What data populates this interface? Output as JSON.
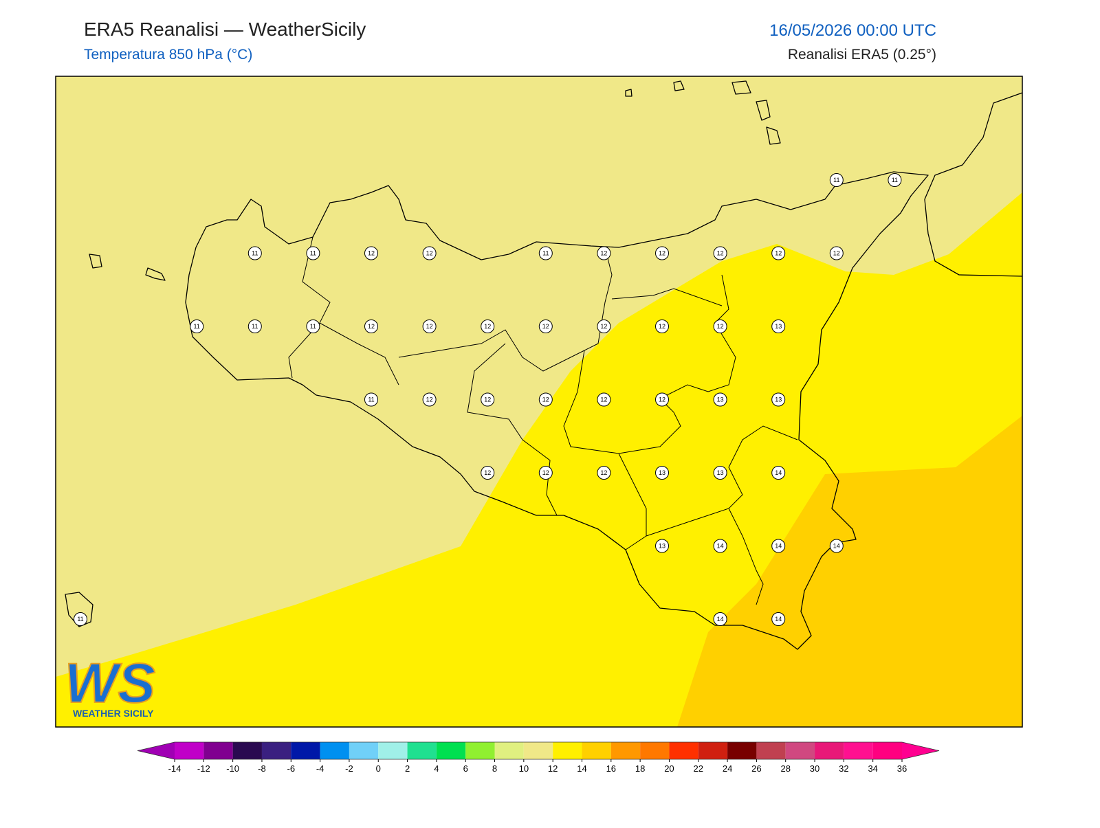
{
  "header": {
    "title": "ERA5 Reanalisi — WeatherSicily",
    "subtitle": "Temperatura 850 hPa (°C)",
    "date": "16/05/2026 00:00 UTC",
    "source": "Reanalisi ERA5 (0.25°)"
  },
  "stations": {
    "rows": [
      [
        null,
        null,
        null,
        null,
        null,
        null,
        null,
        null,
        null,
        null,
        null,
        null,
        null,
        11,
        11
      ],
      [
        null,
        null,
        null,
        11,
        11,
        12,
        12,
        null,
        11,
        12,
        12,
        12,
        12,
        12,
        null
      ],
      [
        null,
        null,
        11,
        11,
        11,
        12,
        12,
        12,
        12,
        12,
        12,
        12,
        13,
        null,
        null
      ],
      [
        null,
        null,
        null,
        null,
        null,
        11,
        12,
        12,
        12,
        12,
        12,
        13,
        13,
        null,
        null
      ],
      [
        null,
        null,
        null,
        null,
        null,
        null,
        null,
        12,
        12,
        12,
        13,
        13,
        14,
        null,
        null
      ],
      [
        null,
        null,
        null,
        null,
        null,
        null,
        null,
        null,
        null,
        null,
        13,
        14,
        14,
        14,
        null
      ],
      [
        11,
        null,
        null,
        null,
        null,
        null,
        null,
        null,
        null,
        null,
        null,
        14,
        14,
        null,
        null
      ]
    ]
  },
  "colorbar": {
    "ticks": [
      -14,
      -12,
      -10,
      -8,
      -6,
      -4,
      -2,
      0,
      2,
      4,
      6,
      8,
      10,
      12,
      14,
      16,
      18,
      20,
      22,
      24,
      26,
      28,
      30,
      32,
      34,
      36
    ],
    "colors": [
      "#a000b4",
      "#c000c8",
      "#800090",
      "#2a0a50",
      "#3a2080",
      "#0018a8",
      "#0090f0",
      "#70d0f8",
      "#a0f0e8",
      "#20e090",
      "#00e050",
      "#90f030",
      "#e0f080",
      "#f0e888",
      "#fff000",
      "#ffd000",
      "#ff9800",
      "#ff7800",
      "#ff3000",
      "#d02010",
      "#780000",
      "#c04050",
      "#d04880",
      "#e81878",
      "#ff1090",
      "#ff0080",
      "#ff0090"
    ]
  },
  "logo": {
    "text": "WS",
    "caption": "WEATHER SICILY"
  }
}
